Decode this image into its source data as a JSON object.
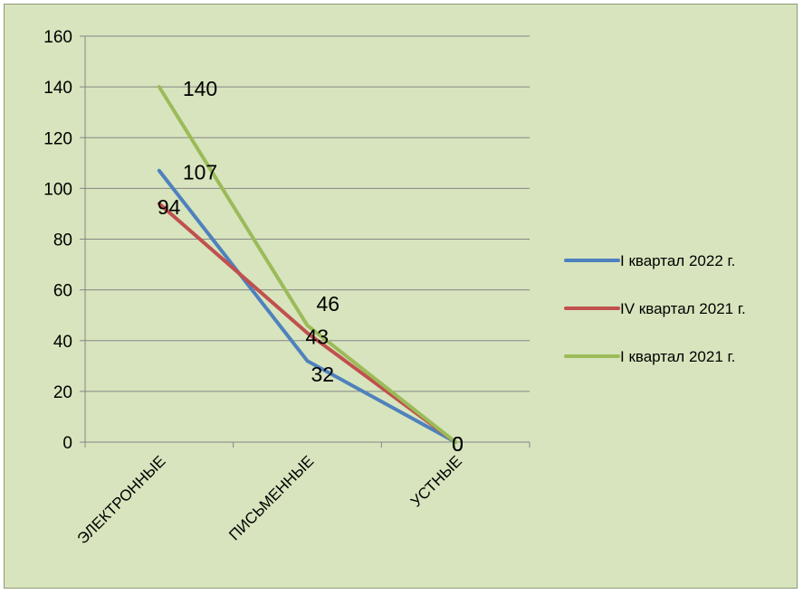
{
  "chart_data": {
    "type": "line",
    "title": "",
    "xlabel": "",
    "ylabel": "",
    "categories": [
      "ЭЛЕКТРОННЫЕ",
      "ПИСЬМЕННЫЕ",
      "УСТНЫЕ"
    ],
    "ylim": [
      0,
      160
    ],
    "yticks": [
      0,
      20,
      40,
      60,
      80,
      100,
      120,
      140,
      160
    ],
    "grid": true,
    "legend_position": "right",
    "series": [
      {
        "name": "I квартал 2022 г.",
        "values": [
          107,
          32,
          0
        ],
        "color": "#4f81bd",
        "data_labels": [
          "107",
          "32",
          "0"
        ]
      },
      {
        "name": "IV квартал 2021 г.",
        "values": [
          94,
          43,
          0
        ],
        "color": "#c0504d",
        "data_labels": [
          "94",
          "43",
          "0"
        ]
      },
      {
        "name": "I квартал 2021 г.",
        "values": [
          140,
          46,
          0
        ],
        "color": "#9bbb59",
        "data_labels": [
          "140",
          "46",
          "0"
        ]
      }
    ]
  },
  "colors": {
    "background": "#d7e4bd",
    "gridline": "#868686"
  }
}
